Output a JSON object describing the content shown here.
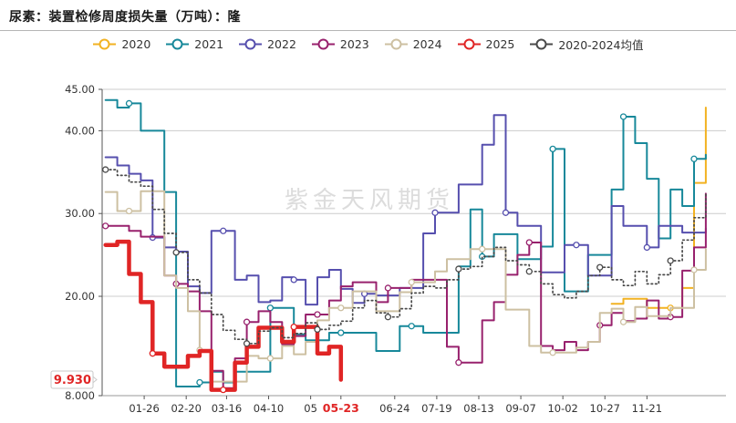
{
  "header": {
    "title": "尿素：装置检修周度损失量（万吨）：隆"
  },
  "watermark": "紫金天风期货",
  "annotations": {
    "current_value_label": "9.930",
    "current_date_label": "05-23",
    "highlight_color": "#e02525"
  },
  "chart_data": {
    "type": "line",
    "title": "尿素：装置检修周度损失量（万吨）：隆",
    "xlabel": "",
    "ylabel": "",
    "ylim": [
      8,
      45
    ],
    "grid": "horizontal",
    "legend_position": "top-center",
    "yticks": [
      {
        "value": 45,
        "label": "45.00",
        "grid": true
      },
      {
        "value": 40,
        "label": "40.00",
        "grid": true
      },
      {
        "value": 30,
        "label": "30.00",
        "grid": true
      },
      {
        "value": 20,
        "label": "20.00",
        "grid": true
      },
      {
        "value": 8,
        "label": "8.000",
        "grid": false
      }
    ],
    "xticks": [
      {
        "label": "01-26",
        "day": 26,
        "highlight": false
      },
      {
        "label": "02-20",
        "day": 51,
        "highlight": false
      },
      {
        "label": "03-16",
        "day": 75,
        "highlight": false
      },
      {
        "label": "04-10",
        "day": 100,
        "highlight": false
      },
      {
        "label": "05",
        "day": 125,
        "highlight": false
      },
      {
        "label": "05-23",
        "day": 143,
        "highlight": true
      },
      {
        "label": "06-24",
        "day": 175,
        "highlight": false
      },
      {
        "label": "07-19",
        "day": 200,
        "highlight": false
      },
      {
        "label": "08-13",
        "day": 225,
        "highlight": false
      },
      {
        "label": "09-07",
        "day": 250,
        "highlight": false
      },
      {
        "label": "10-02",
        "day": 275,
        "highlight": false
      },
      {
        "label": "10-27",
        "day": 300,
        "highlight": false
      },
      {
        "label": "11-21",
        "day": 325,
        "highlight": false
      }
    ],
    "x_weeks": 52,
    "series": [
      {
        "name": "2020",
        "color": "#f2b222",
        "width": 2,
        "style": "solid",
        "values": [
          null,
          null,
          null,
          null,
          null,
          null,
          null,
          null,
          null,
          null,
          null,
          null,
          null,
          null,
          null,
          null,
          null,
          null,
          null,
          null,
          null,
          null,
          null,
          null,
          null,
          null,
          null,
          null,
          null,
          null,
          null,
          null,
          null,
          null,
          null,
          null,
          null,
          null,
          null,
          null,
          null,
          null,
          null,
          19.1,
          19.7,
          19.7,
          18.6,
          18.6,
          18.6,
          21.0,
          33.7,
          42.8
        ]
      },
      {
        "name": "2021",
        "color": "#17889a",
        "width": 2,
        "style": "solid",
        "values": [
          43.7,
          42.8,
          43.3,
          40.0,
          40.0,
          32.6,
          9.1,
          9.1,
          9.6,
          10.9,
          9.6,
          10.9,
          10.9,
          10.9,
          18.6,
          18.6,
          15.4,
          14.7,
          14.7,
          15.6,
          15.6,
          15.6,
          15.6,
          13.4,
          13.4,
          16.4,
          16.4,
          15.6,
          15.6,
          15.6,
          23.6,
          30.5,
          24.8,
          27.5,
          27.5,
          24.5,
          24.5,
          26.0,
          37.8,
          20.6,
          20.6,
          25.0,
          25.0,
          32.9,
          41.7,
          38.5,
          34.2,
          27.0,
          32.9,
          30.9,
          36.6,
          37.1
        ]
      },
      {
        "name": "2022",
        "color": "#564fae",
        "width": 2,
        "style": "solid",
        "values": [
          36.8,
          35.8,
          34.8,
          34.0,
          27.1,
          25.9,
          25.4,
          21.2,
          20.4,
          27.9,
          27.9,
          22.0,
          22.5,
          19.3,
          19.5,
          22.3,
          22.0,
          19.0,
          22.3,
          23.2,
          20.9,
          19.2,
          20.3,
          20.1,
          20.1,
          21.0,
          21.0,
          27.6,
          30.1,
          30.1,
          33.5,
          33.5,
          38.3,
          41.9,
          30.1,
          28.5,
          28.5,
          22.9,
          22.9,
          26.2,
          26.2,
          22.5,
          22.5,
          30.9,
          28.5,
          28.5,
          25.9,
          28.5,
          28.5,
          27.7,
          27.7,
          28.2
        ]
      },
      {
        "name": "2023",
        "color": "#98216d",
        "width": 2,
        "style": "solid",
        "values": [
          28.5,
          28.5,
          27.9,
          27.2,
          27.2,
          22.5,
          21.5,
          20.6,
          18.2,
          11.0,
          8.9,
          12.5,
          16.9,
          18.2,
          16.9,
          14.2,
          15.2,
          17.8,
          17.8,
          19.5,
          21.2,
          21.7,
          21.7,
          19.3,
          21.0,
          21.0,
          22.0,
          22.0,
          22.0,
          13.9,
          12.0,
          12.0,
          17.1,
          19.3,
          22.6,
          25.0,
          26.5,
          14.0,
          13.5,
          14.5,
          13.5,
          14.5,
          16.5,
          18.0,
          17.0,
          17.3,
          19.5,
          17.3,
          17.5,
          23.1,
          25.9,
          32.4
        ]
      },
      {
        "name": "2024",
        "color": "#cdc0a2",
        "width": 2,
        "style": "solid",
        "values": [
          32.6,
          30.3,
          30.3,
          32.7,
          32.7,
          22.5,
          21.0,
          18.2,
          13.5,
          9.7,
          9.7,
          9.7,
          12.8,
          12.5,
          12.5,
          14.0,
          13.0,
          14.5,
          17.1,
          18.6,
          18.6,
          20.6,
          20.6,
          18.2,
          18.2,
          20.5,
          21.7,
          21.7,
          23.0,
          24.5,
          24.5,
          25.7,
          25.7,
          25.7,
          18.4,
          18.4,
          14.0,
          13.2,
          13.2,
          13.2,
          13.8,
          14.5,
          18.0,
          18.5,
          16.9,
          18.7,
          17.6,
          17.6,
          18.6,
          18.6,
          23.2,
          25.7
        ]
      },
      {
        "name": "2025",
        "color": "#e02525",
        "width": 4.5,
        "style": "solid",
        "values": [
          26.2,
          26.6,
          22.7,
          19.3,
          13.1,
          11.5,
          11.5,
          12.8,
          13.4,
          8.7,
          8.7,
          12.0,
          13.9,
          16.2,
          16.2,
          14.5,
          16.3,
          16.3,
          13.1,
          13.9,
          9.93,
          null,
          null,
          null,
          null,
          null,
          null,
          null,
          null,
          null,
          null,
          null,
          null,
          null,
          null,
          null,
          null,
          null,
          null,
          null,
          null,
          null,
          null,
          null,
          null,
          null,
          null,
          null,
          null,
          null,
          null,
          null
        ]
      },
      {
        "name": "2020-2024均值",
        "color": "#4a4a4a",
        "width": 1.7,
        "style": "dotted",
        "values": [
          35.3,
          34.6,
          33.8,
          33.3,
          30.5,
          27.6,
          25.3,
          22.0,
          20.4,
          17.8,
          15.9,
          14.8,
          14.3,
          15.8,
          16.2,
          15.0,
          15.5,
          16.8,
          16.0,
          16.5,
          17.0,
          18.6,
          19.5,
          18.0,
          17.5,
          18.5,
          20.4,
          21.2,
          21.0,
          22.0,
          23.3,
          23.6,
          24.8,
          25.9,
          24.3,
          23.8,
          23.0,
          21.5,
          20.2,
          19.8,
          20.6,
          22.5,
          23.5,
          22.0,
          21.3,
          23.0,
          21.5,
          22.6,
          24.3,
          26.8,
          29.5,
          32.4
        ]
      }
    ]
  }
}
